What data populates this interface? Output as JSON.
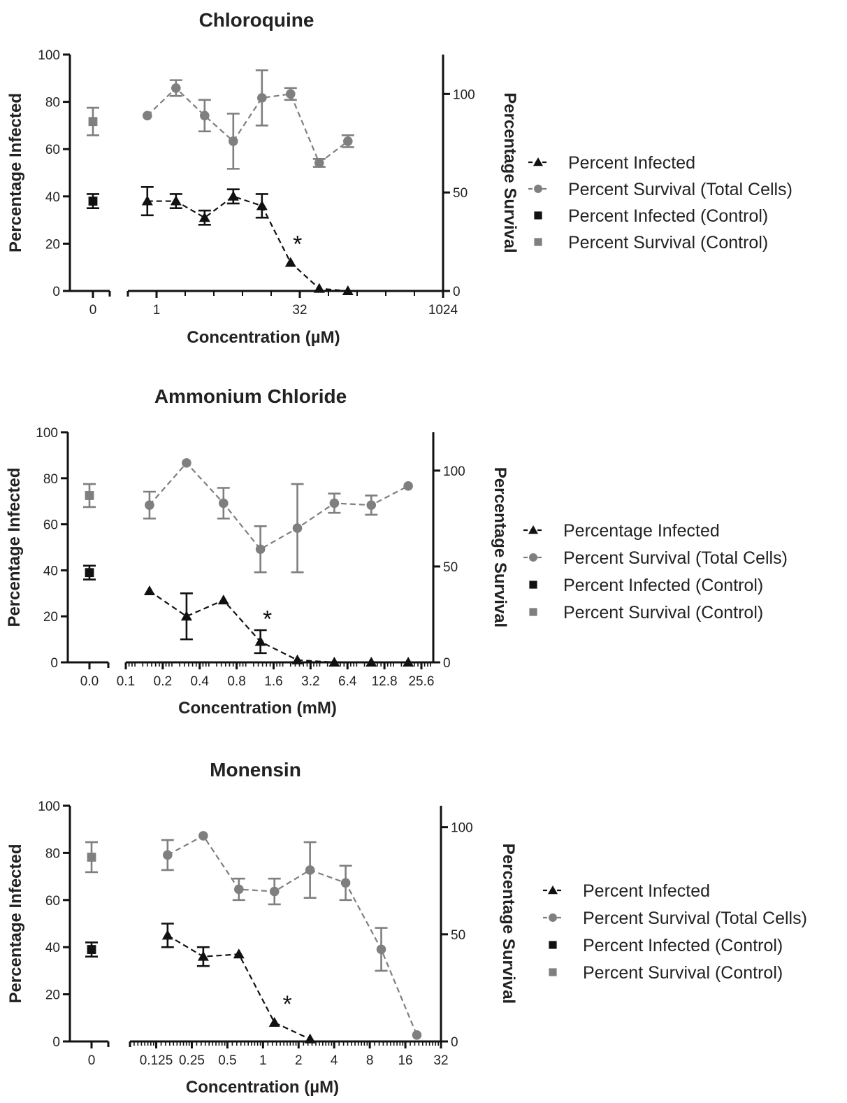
{
  "colors": {
    "infected": "#111111",
    "survival": "#7f7f7f"
  },
  "chart_data": [
    {
      "type": "line",
      "title": "Chloroquine",
      "xlabel": "Concentration (µM)",
      "ylabel": "Percentage Infected",
      "y2label": "Percentage Survival",
      "xscale": "log2",
      "xlim": [
        0.5,
        1024
      ],
      "xticks": [
        "1",
        "32",
        "1024"
      ],
      "control_tick": "0",
      "ylim": [
        0,
        100
      ],
      "yticks": [
        "0",
        "20",
        "40",
        "60",
        "80",
        "100"
      ],
      "y2lim": [
        0,
        120
      ],
      "y2ticks": [
        "0",
        "50",
        "100"
      ],
      "series": [
        {
          "name": "Percent Infected",
          "axis": "left",
          "marker": "triangle",
          "x": [
            0.8,
            1.6,
            3.2,
            6.4,
            12.8,
            25.6,
            51.2,
            102.4
          ],
          "y": [
            38,
            38,
            31,
            40,
            36,
            12,
            1,
            0
          ],
          "err": [
            6,
            3,
            3,
            3,
            5,
            0,
            0,
            0
          ]
        },
        {
          "name": "Percent Survival (Total Cells)",
          "axis": "right",
          "marker": "circle",
          "x": [
            0.8,
            1.6,
            3.2,
            6.4,
            12.8,
            25.6,
            51.2,
            102.4
          ],
          "y": [
            89,
            103,
            89,
            76,
            98,
            100,
            65,
            76
          ],
          "err": [
            0,
            4,
            8,
            14,
            14,
            3,
            2,
            3
          ]
        },
        {
          "name": "Percent Infected (Control)",
          "axis": "left",
          "marker": "square",
          "control": true,
          "y": [
            38
          ],
          "err": [
            3
          ]
        },
        {
          "name": "Percent Survival (Control)",
          "axis": "right",
          "marker": "square",
          "control": true,
          "y": [
            86
          ],
          "err": [
            7
          ]
        }
      ],
      "annotations": [
        {
          "text": "*",
          "x": 25.6,
          "y": 20
        }
      ]
    },
    {
      "type": "line",
      "title": "Ammonium Chloride",
      "xlabel": "Concentration (mM)",
      "ylabel": "Percentage Infected",
      "y2label": "Percentage Survival",
      "xscale": "log2",
      "xlim": [
        0.1,
        32
      ],
      "xticks": [
        "0.1",
        "0.2",
        "0.4",
        "0.8",
        "1.6",
        "3.2",
        "6.4",
        "12.8",
        "25.6"
      ],
      "control_tick": "0.0",
      "ylim": [
        0,
        100
      ],
      "yticks": [
        "0",
        "20",
        "40",
        "60",
        "80",
        "100"
      ],
      "y2lim": [
        0,
        120
      ],
      "y2ticks": [
        "0",
        "50",
        "100"
      ],
      "series": [
        {
          "name": "Percentage Infected",
          "axis": "left",
          "marker": "triangle",
          "x": [
            0.156,
            0.3125,
            0.625,
            1.25,
            2.5,
            5,
            10,
            20
          ],
          "y": [
            31,
            20,
            27,
            9,
            1,
            0,
            0,
            0
          ],
          "err": [
            0,
            10,
            0,
            5,
            0,
            0,
            0,
            0
          ]
        },
        {
          "name": "Percent Survival (Total Cells)",
          "axis": "right",
          "marker": "circle",
          "x": [
            0.156,
            0.3125,
            0.625,
            1.25,
            2.5,
            5,
            10,
            20
          ],
          "y": [
            82,
            104,
            83,
            59,
            70,
            83,
            82,
            92
          ],
          "err": [
            7,
            0,
            8,
            12,
            23,
            5,
            5,
            0
          ]
        },
        {
          "name": "Percent Infected (Control)",
          "axis": "left",
          "marker": "square",
          "control": true,
          "y": [
            39
          ],
          "err": [
            3
          ]
        },
        {
          "name": "Percent Survival (Control)",
          "axis": "right",
          "marker": "square",
          "control": true,
          "y": [
            87
          ],
          "err": [
            6
          ]
        }
      ],
      "annotations": [
        {
          "text": "*",
          "x": 1.25,
          "y": 19
        }
      ]
    },
    {
      "type": "line",
      "title": "Monensin",
      "xlabel": "Concentration (µM)",
      "ylabel": "Percentage Infected",
      "y2label": "Percentage Survival",
      "xscale": "log2",
      "xlim": [
        0.075,
        32
      ],
      "xticks": [
        "0.125",
        "0.25",
        "0.5",
        "1",
        "2",
        "4",
        "8",
        "16",
        "32"
      ],
      "control_tick": "0",
      "ylim": [
        0,
        100
      ],
      "yticks": [
        "0",
        "20",
        "40",
        "60",
        "80",
        "100"
      ],
      "y2lim": [
        0,
        110
      ],
      "y2ticks": [
        "0",
        "50",
        "100"
      ],
      "series": [
        {
          "name": "Percent Infected",
          "axis": "left",
          "marker": "triangle",
          "x": [
            0.156,
            0.3125,
            0.625,
            1.25,
            2.5
          ],
          "y": [
            45,
            36,
            37,
            8,
            1
          ],
          "err": [
            5,
            4,
            0,
            0,
            0
          ]
        },
        {
          "name": "Percent Survival (Total Cells)",
          "axis": "right",
          "marker": "circle",
          "x": [
            0.156,
            0.3125,
            0.625,
            1.25,
            2.5,
            5,
            10,
            20
          ],
          "y": [
            87,
            96,
            71,
            70,
            80,
            74,
            43,
            3
          ],
          "err": [
            7,
            0,
            5,
            6,
            13,
            8,
            10,
            0
          ]
        },
        {
          "name": "Percent Infected (Control)",
          "axis": "left",
          "marker": "square",
          "control": true,
          "y": [
            39
          ],
          "err": [
            3
          ]
        },
        {
          "name": "Percent Survival (Control)",
          "axis": "right",
          "marker": "square",
          "control": true,
          "y": [
            86
          ],
          "err": [
            7
          ]
        }
      ],
      "annotations": [
        {
          "text": "*",
          "x": 1.4,
          "y": 16
        }
      ]
    }
  ]
}
